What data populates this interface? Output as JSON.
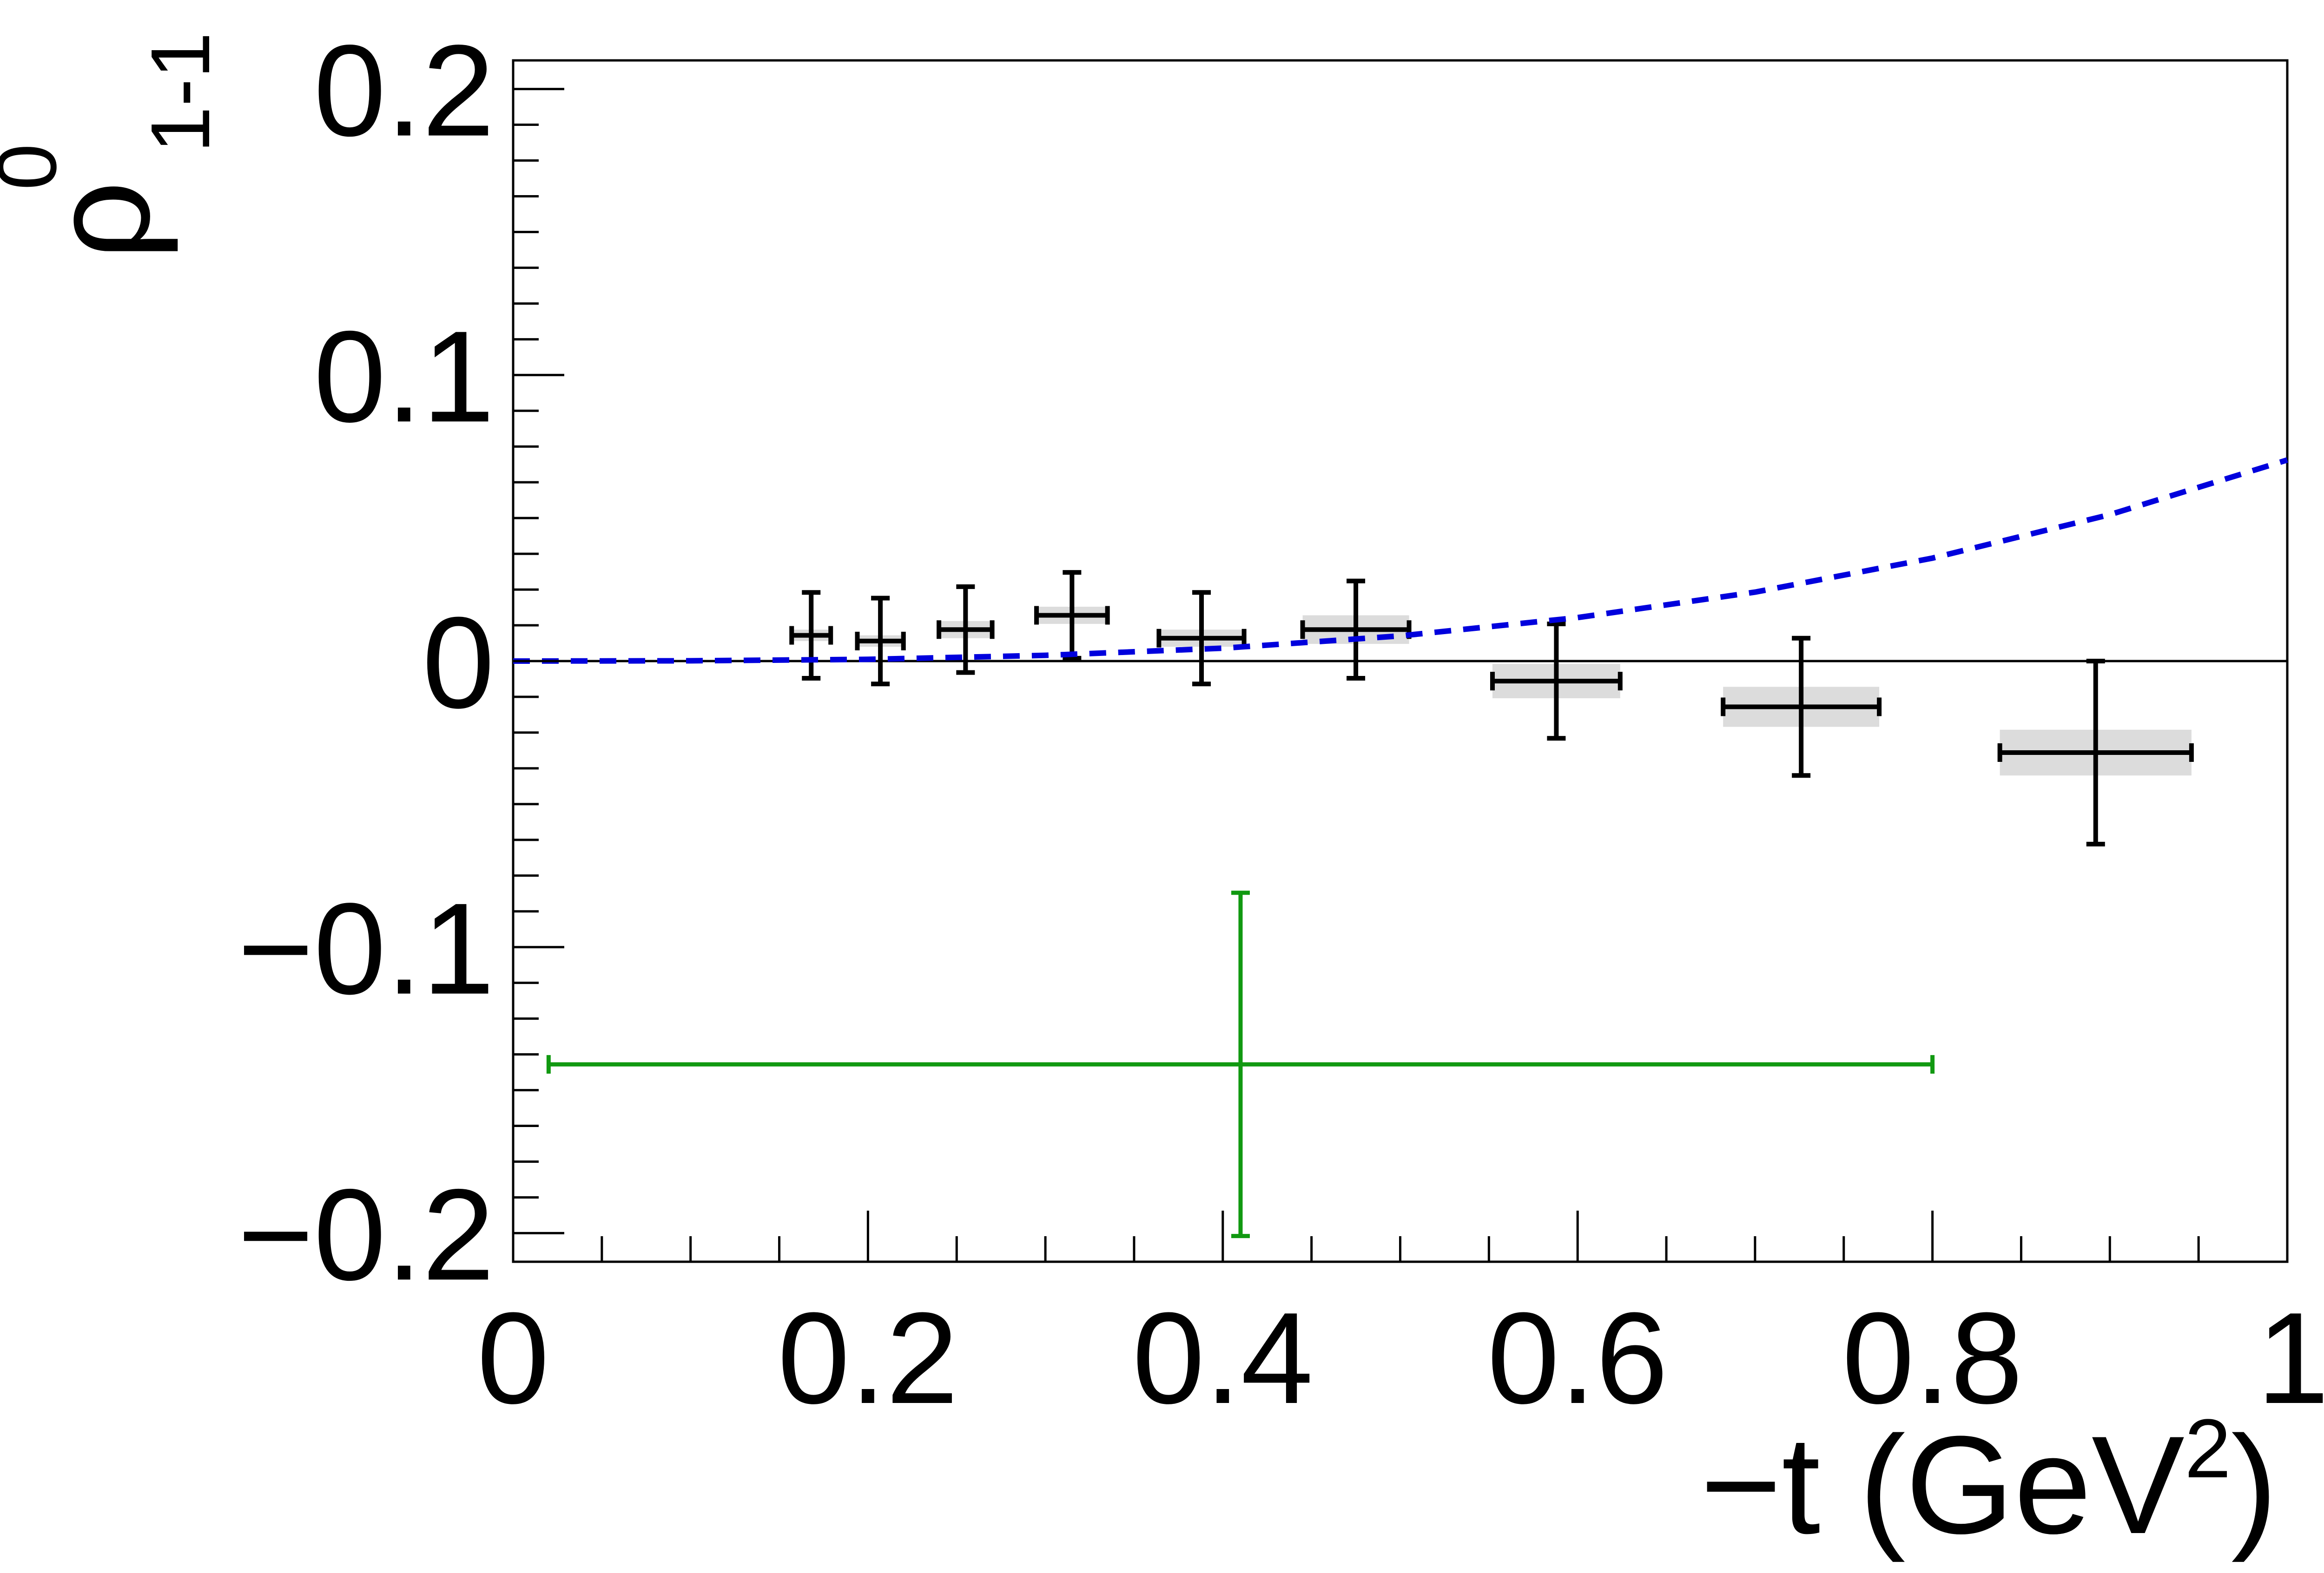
{
  "chart_data": {
    "type": "scatter",
    "xlim": [
      0,
      1
    ],
    "ylim": [
      -0.21,
      0.21
    ],
    "grid": false,
    "legend": "none",
    "xlabel": "−t (GeV",
    "xlabel_sup": "2",
    "xlabel_tail": ")",
    "ylabel": "ρ",
    "ylabel_sup": "0",
    "ylabel_sub": "1-1",
    "xtick_labels": [
      "0",
      "0.2",
      "0.4",
      "0.6",
      "0.8",
      "1"
    ],
    "ytick_labels": [
      "−0.2",
      "−0.1",
      "0",
      "0.1",
      "0.2"
    ],
    "series": [
      {
        "type": "errorbar",
        "color": "#000000",
        "syst_color": "#dcdcdc",
        "points": [
          {
            "x": 0.168,
            "y": 0.009,
            "xerr": 0.011,
            "yerr": 0.015,
            "syst": 0.002
          },
          {
            "x": 0.207,
            "y": 0.007,
            "xerr": 0.013,
            "yerr": 0.015,
            "syst": 0.002
          },
          {
            "x": 0.255,
            "y": 0.011,
            "xerr": 0.015,
            "yerr": 0.015,
            "syst": 0.003
          },
          {
            "x": 0.315,
            "y": 0.016,
            "xerr": 0.02,
            "yerr": 0.015,
            "syst": 0.003
          },
          {
            "x": 0.388,
            "y": 0.008,
            "xerr": 0.024,
            "yerr": 0.016,
            "syst": 0.003
          },
          {
            "x": 0.475,
            "y": 0.011,
            "xerr": 0.03,
            "yerr": 0.017,
            "syst": 0.005
          },
          {
            "x": 0.588,
            "y": -0.007,
            "xerr": 0.036,
            "yerr": 0.02,
            "syst": 0.006
          },
          {
            "x": 0.726,
            "y": -0.016,
            "xerr": 0.044,
            "yerr": 0.024,
            "syst": 0.007
          },
          {
            "x": 0.892,
            "y": -0.032,
            "xerr": 0.054,
            "yerr": 0.032,
            "syst": 0.008
          }
        ]
      },
      {
        "type": "errorbar",
        "color": "#119911",
        "points": [
          {
            "x": 0.41,
            "y": -0.141,
            "xerr": 0.39,
            "yerr": 0.06,
            "xerr_low": 0.39,
            "xerr_high": 0.39
          }
        ]
      },
      {
        "type": "line",
        "style": "dashed",
        "color": "#0000dd",
        "x": [
          0.0,
          0.1,
          0.2,
          0.3,
          0.4,
          0.5,
          0.6,
          0.7,
          0.8,
          0.9,
          1.0
        ],
        "y": [
          0.0,
          0.0001,
          0.0006,
          0.002,
          0.0045,
          0.0088,
          0.0152,
          0.0241,
          0.036,
          0.0512,
          0.0703
        ]
      }
    ]
  }
}
